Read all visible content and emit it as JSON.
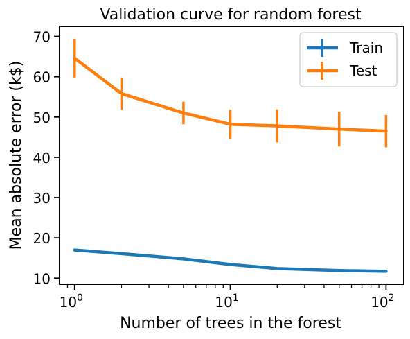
{
  "chart_data": {
    "type": "line",
    "title": "Validation curve for random forest",
    "xlabel": "Number of trees in the forest",
    "ylabel": "Mean absolute error (k$)",
    "xscale": "log",
    "xlim": [
      0.8,
      130
    ],
    "ylim": [
      8.5,
      72.5
    ],
    "x_ticks": [
      {
        "value": 1,
        "base": "10",
        "exp": "0"
      },
      {
        "value": 10,
        "base": "10",
        "exp": "1"
      },
      {
        "value": 100,
        "base": "10",
        "exp": "2"
      }
    ],
    "y_ticks": [
      10,
      20,
      30,
      40,
      50,
      60,
      70
    ],
    "x": [
      1,
      2,
      5,
      10,
      20,
      50,
      100
    ],
    "series": [
      {
        "name": "Train",
        "color": "#1f77b4",
        "values": [
          17.0,
          16.1,
          14.8,
          13.4,
          12.4,
          11.9,
          11.7
        ],
        "errors": [
          0.3,
          0.3,
          0.2,
          0.2,
          0.2,
          0.2,
          0.2
        ]
      },
      {
        "name": "Test",
        "color": "#ff7f0e",
        "values": [
          64.6,
          55.8,
          51.0,
          48.2,
          47.8,
          47.0,
          46.5
        ],
        "errors": [
          4.8,
          4.0,
          2.8,
          3.6,
          4.1,
          4.3,
          4.0
        ]
      }
    ],
    "legend_position": "top-right",
    "grid": false
  }
}
